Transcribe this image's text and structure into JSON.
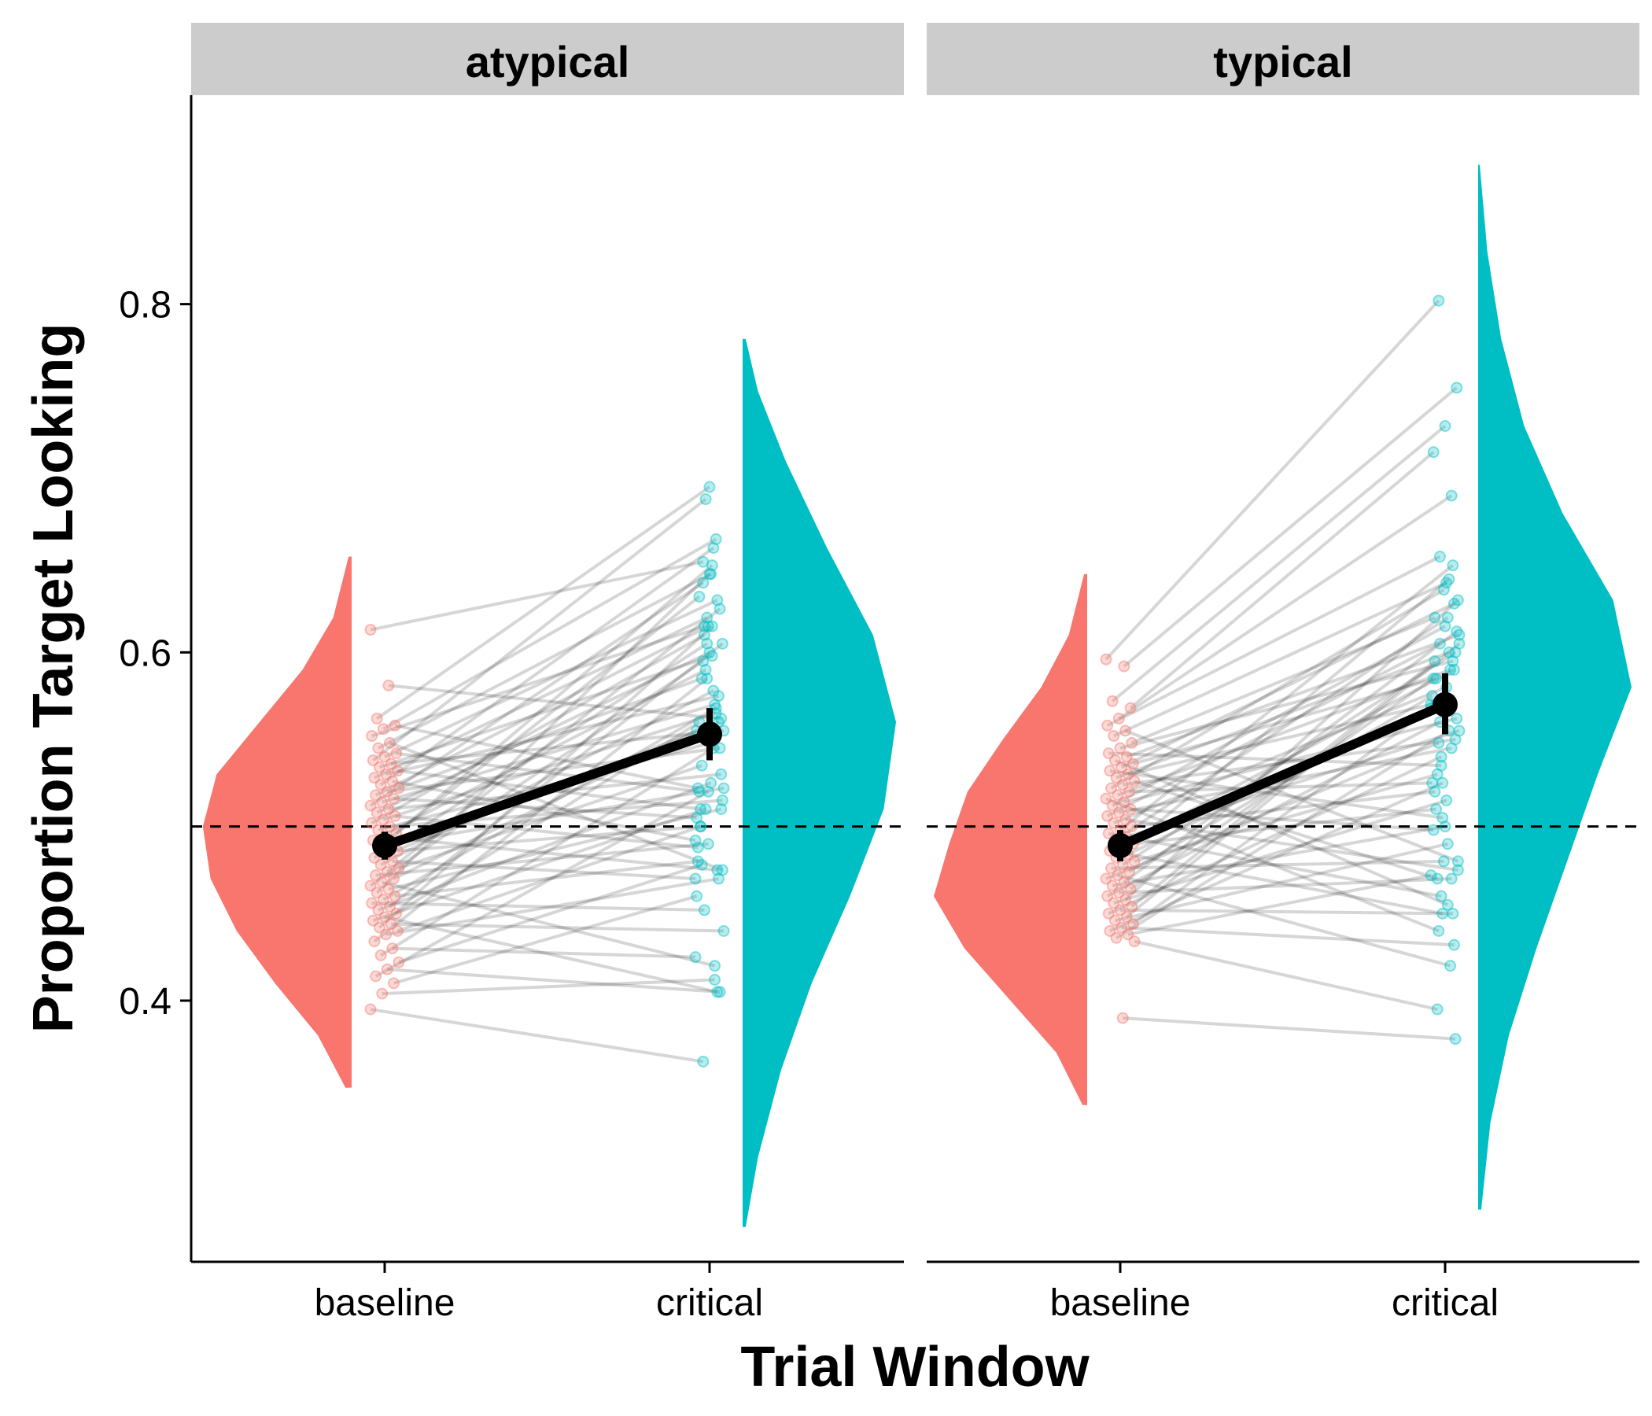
{
  "chart_data": {
    "type": "raincloud",
    "xlabel": "Trial Window",
    "ylabel": "Proportion Target Looking",
    "ylim": [
      0.25,
      0.92
    ],
    "yticks": [
      0.4,
      0.6,
      0.8
    ],
    "ytick_labels": [
      "0.4",
      "0.6",
      "0.8"
    ],
    "reference_line": 0.5,
    "categories": [
      "baseline",
      "critical"
    ],
    "colors": {
      "baseline": "#F8766D",
      "critical": "#00BFC4",
      "strip": "#CCCCCC",
      "summary": "#000000"
    },
    "panels": [
      {
        "facet": "atypical",
        "summary": {
          "baseline": {
            "mean": 0.489,
            "low": 0.481,
            "high": 0.497
          },
          "critical": {
            "mean": 0.553,
            "low": 0.538,
            "high": 0.568
          }
        },
        "density": {
          "baseline": {
            "y": [
              0.35,
              0.38,
              0.41,
              0.44,
              0.47,
              0.5,
              0.53,
              0.56,
              0.59,
              0.62,
              0.655
            ],
            "d": [
              0.04,
              0.22,
              0.5,
              0.75,
              0.92,
              0.97,
              0.88,
              0.6,
              0.32,
              0.12,
              0.02
            ]
          },
          "critical": {
            "y": [
              0.27,
              0.31,
              0.36,
              0.41,
              0.46,
              0.51,
              0.56,
              0.61,
              0.66,
              0.71,
              0.75,
              0.78
            ],
            "d": [
              0.02,
              0.1,
              0.25,
              0.45,
              0.7,
              0.92,
              1.0,
              0.85,
              0.55,
              0.28,
              0.1,
              0.02
            ]
          }
        },
        "pairs": [
          [
            0.613,
            0.652
          ],
          [
            0.581,
            0.562
          ],
          [
            0.562,
            0.695
          ],
          [
            0.558,
            0.522
          ],
          [
            0.556,
            0.665
          ],
          [
            0.552,
            0.615
          ],
          [
            0.548,
            0.475
          ],
          [
            0.545,
            0.645
          ],
          [
            0.542,
            0.52
          ],
          [
            0.54,
            0.63
          ],
          [
            0.538,
            0.688
          ],
          [
            0.536,
            0.555
          ],
          [
            0.534,
            0.598
          ],
          [
            0.532,
            0.51
          ],
          [
            0.53,
            0.575
          ],
          [
            0.528,
            0.62
          ],
          [
            0.526,
            0.492
          ],
          [
            0.524,
            0.66
          ],
          [
            0.522,
            0.585
          ],
          [
            0.52,
            0.545
          ],
          [
            0.518,
            0.615
          ],
          [
            0.516,
            0.505
          ],
          [
            0.514,
            0.57
          ],
          [
            0.512,
            0.64
          ],
          [
            0.51,
            0.53
          ],
          [
            0.508,
            0.6
          ],
          [
            0.506,
            0.488
          ],
          [
            0.504,
            0.565
          ],
          [
            0.502,
            0.61
          ],
          [
            0.5,
            0.515
          ],
          [
            0.498,
            0.548
          ],
          [
            0.496,
            0.632
          ],
          [
            0.494,
            0.475
          ],
          [
            0.492,
            0.59
          ],
          [
            0.49,
            0.522
          ],
          [
            0.488,
            0.65
          ],
          [
            0.486,
            0.5
          ],
          [
            0.484,
            0.56
          ],
          [
            0.482,
            0.605
          ],
          [
            0.48,
            0.47
          ],
          [
            0.478,
            0.578
          ],
          [
            0.476,
            0.535
          ],
          [
            0.474,
            0.625
          ],
          [
            0.472,
            0.49
          ],
          [
            0.47,
            0.555
          ],
          [
            0.468,
            0.42
          ],
          [
            0.466,
            0.595
          ],
          [
            0.464,
            0.51
          ],
          [
            0.462,
            0.645
          ],
          [
            0.46,
            0.48
          ],
          [
            0.458,
            0.568
          ],
          [
            0.456,
            0.452
          ],
          [
            0.454,
            0.605
          ],
          [
            0.452,
            0.525
          ],
          [
            0.45,
            0.56
          ],
          [
            0.448,
            0.405
          ],
          [
            0.446,
            0.51
          ],
          [
            0.444,
            0.44
          ],
          [
            0.442,
            0.615
          ],
          [
            0.44,
            0.5
          ],
          [
            0.438,
            0.47
          ],
          [
            0.434,
            0.585
          ],
          [
            0.43,
            0.425
          ],
          [
            0.426,
            0.545
          ],
          [
            0.422,
            0.478
          ],
          [
            0.418,
            0.405
          ],
          [
            0.414,
            0.52
          ],
          [
            0.41,
            0.46
          ],
          [
            0.404,
            0.412
          ],
          [
            0.395,
            0.365
          ]
        ]
      },
      {
        "facet": "typical",
        "summary": {
          "baseline": {
            "mean": 0.489,
            "low": 0.48,
            "high": 0.498
          },
          "critical": {
            "mean": 0.57,
            "low": 0.553,
            "high": 0.588
          }
        },
        "density": {
          "baseline": {
            "y": [
              0.34,
              0.37,
              0.4,
              0.43,
              0.46,
              0.49,
              0.52,
              0.55,
              0.58,
              0.61,
              0.645
            ],
            "d": [
              0.03,
              0.2,
              0.5,
              0.8,
              1.0,
              0.9,
              0.78,
              0.55,
              0.3,
              0.12,
              0.02
            ]
          },
          "critical": {
            "y": [
              0.28,
              0.33,
              0.38,
              0.43,
              0.48,
              0.53,
              0.58,
              0.63,
              0.68,
              0.73,
              0.78,
              0.83,
              0.88
            ],
            "d": [
              0.02,
              0.08,
              0.2,
              0.38,
              0.58,
              0.78,
              1.0,
              0.88,
              0.55,
              0.3,
              0.15,
              0.06,
              0.01
            ]
          }
        },
        "pairs": [
          [
            0.596,
            0.802
          ],
          [
            0.592,
            0.752
          ],
          [
            0.572,
            0.73
          ],
          [
            0.568,
            0.715
          ],
          [
            0.562,
            0.69
          ],
          [
            0.558,
            0.655
          ],
          [
            0.555,
            0.48
          ],
          [
            0.552,
            0.64
          ],
          [
            0.548,
            0.62
          ],
          [
            0.545,
            0.595
          ],
          [
            0.542,
            0.535
          ],
          [
            0.54,
            0.61
          ],
          [
            0.538,
            0.455
          ],
          [
            0.536,
            0.585
          ],
          [
            0.534,
            0.628
          ],
          [
            0.532,
            0.505
          ],
          [
            0.53,
            0.57
          ],
          [
            0.528,
            0.6
          ],
          [
            0.526,
            0.47
          ],
          [
            0.524,
            0.55
          ],
          [
            0.522,
            0.636
          ],
          [
            0.52,
            0.525
          ],
          [
            0.518,
            0.59
          ],
          [
            0.516,
            0.44
          ],
          [
            0.514,
            0.562
          ],
          [
            0.512,
            0.615
          ],
          [
            0.51,
            0.498
          ],
          [
            0.508,
            0.545
          ],
          [
            0.506,
            0.605
          ],
          [
            0.504,
            0.475
          ],
          [
            0.502,
            0.58
          ],
          [
            0.5,
            0.52
          ],
          [
            0.498,
            0.65
          ],
          [
            0.496,
            0.46
          ],
          [
            0.494,
            0.555
          ],
          [
            0.492,
            0.62
          ],
          [
            0.49,
            0.51
          ],
          [
            0.488,
            0.59
          ],
          [
            0.486,
            0.45
          ],
          [
            0.484,
            0.568
          ],
          [
            0.482,
            0.642
          ],
          [
            0.48,
            0.53
          ],
          [
            0.478,
            0.6
          ],
          [
            0.476,
            0.48
          ],
          [
            0.474,
            0.575
          ],
          [
            0.472,
            0.42
          ],
          [
            0.47,
            0.548
          ],
          [
            0.468,
            0.612
          ],
          [
            0.466,
            0.5
          ],
          [
            0.464,
            0.585
          ],
          [
            0.462,
            0.47
          ],
          [
            0.46,
            0.56
          ],
          [
            0.458,
            0.63
          ],
          [
            0.456,
            0.515
          ],
          [
            0.454,
            0.595
          ],
          [
            0.452,
            0.45
          ],
          [
            0.45,
            0.54
          ],
          [
            0.448,
            0.605
          ],
          [
            0.446,
            0.49
          ],
          [
            0.444,
            0.57
          ],
          [
            0.442,
            0.432
          ],
          [
            0.44,
            0.525
          ],
          [
            0.438,
            0.472
          ],
          [
            0.436,
            0.555
          ],
          [
            0.434,
            0.395
          ],
          [
            0.39,
            0.378
          ]
        ]
      }
    ]
  }
}
